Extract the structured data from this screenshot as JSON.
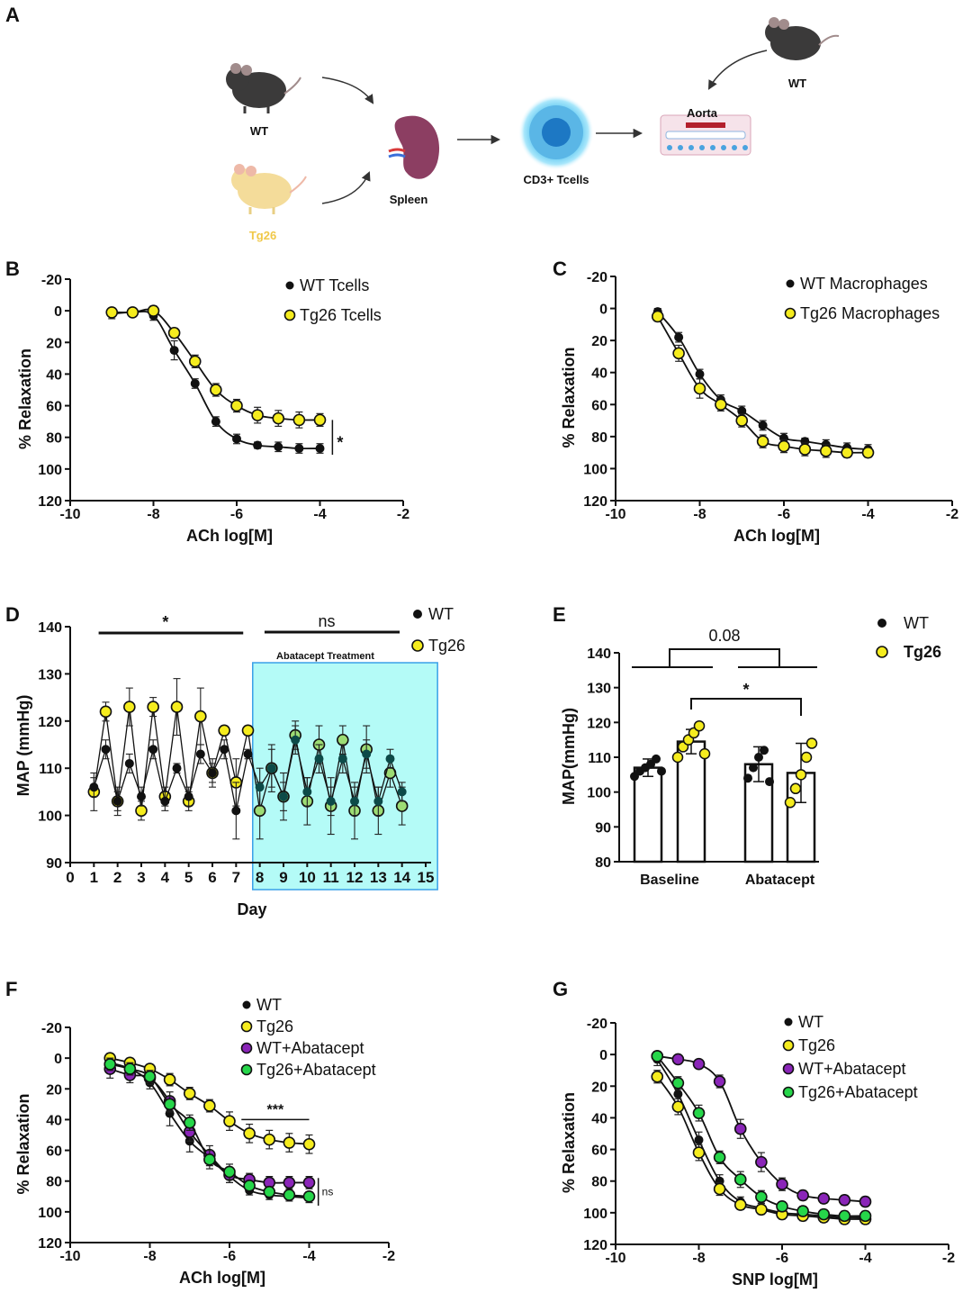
{
  "colors": {
    "wt": "#111111",
    "tg26": "#f5ec1e",
    "purple": "#8a25b8",
    "green": "#26d64a",
    "cyan_fill": "#b4fbf7",
    "cyan_border": "#3aa0e8"
  },
  "panelA": {
    "letter": "A",
    "labels": {
      "wt_left": "WT",
      "tg26": "Tg26",
      "spleen": "Spleen",
      "tcells": "CD3+ Tcells",
      "aorta": "Aorta",
      "wt_right": "WT"
    }
  },
  "chart_data": [
    {
      "id": "B",
      "type": "scatter",
      "letter": "B",
      "xlabel": "ACh log[M]",
      "ylabel": "% Relaxation",
      "xlim": [
        -10,
        -2
      ],
      "ylim": [
        -20,
        120
      ],
      "y_inverted": true,
      "xticks": [
        "-10",
        "-8",
        "-6",
        "-4",
        "-2"
      ],
      "yticks": [
        "-20",
        "0",
        "20",
        "40",
        "60",
        "80",
        "100",
        "120"
      ],
      "x": [
        -9,
        -8.5,
        -8,
        -7.5,
        -7,
        -6.5,
        -6,
        -5.5,
        -5,
        -4.5,
        -4
      ],
      "series": [
        {
          "name": "WT Tcells",
          "color": "#111111",
          "values": [
            2,
            1,
            3,
            25,
            46,
            70,
            81,
            85,
            86,
            87,
            87
          ],
          "err": [
            3,
            2,
            3,
            6,
            3,
            3,
            3,
            2,
            3,
            3,
            3
          ]
        },
        {
          "name": "Tg26 Tcells",
          "color": "#f5ec1e",
          "values": [
            1,
            1,
            0,
            14,
            32,
            50,
            60,
            66,
            68,
            69,
            69
          ],
          "err": [
            2,
            2,
            3,
            3,
            4,
            4,
            4,
            5,
            5,
            5,
            4
          ]
        }
      ],
      "annotations": [
        "*"
      ]
    },
    {
      "id": "C",
      "type": "scatter",
      "letter": "C",
      "xlabel": "ACh log[M]",
      "ylabel": "% Relaxation",
      "xlim": [
        -10,
        -2
      ],
      "ylim": [
        -20,
        120
      ],
      "y_inverted": true,
      "xticks": [
        "-10",
        "-8",
        "-6",
        "-4",
        "-2"
      ],
      "yticks": [
        "-20",
        "0",
        "20",
        "40",
        "60",
        "80",
        "100",
        "120"
      ],
      "x": [
        -9,
        -8.5,
        -8,
        -7.5,
        -7,
        -6.5,
        -6,
        -5.5,
        -5,
        -4.5,
        -4
      ],
      "series": [
        {
          "name": "WT Macrophages",
          "color": "#111111",
          "values": [
            2,
            18,
            41,
            57,
            64,
            73,
            81,
            83,
            85,
            87,
            88
          ],
          "err": [
            2,
            3,
            3,
            3,
            3,
            3,
            3,
            2,
            3,
            3,
            3
          ]
        },
        {
          "name": "Tg26 Macrophages",
          "color": "#f5ec1e",
          "values": [
            5,
            28,
            50,
            60,
            70,
            83,
            86,
            88,
            89,
            90,
            90
          ],
          "err": [
            3,
            5,
            6,
            4,
            4,
            4,
            4,
            4,
            4,
            3,
            3
          ]
        }
      ],
      "annotations": []
    },
    {
      "id": "D",
      "type": "line",
      "letter": "D",
      "xlabel": "Day",
      "ylabel": "MAP (mmHg)",
      "xlim": [
        0,
        15
      ],
      "ylim": [
        90,
        140
      ],
      "xticks": [
        "0",
        "1",
        "2",
        "3",
        "4",
        "5",
        "6",
        "7",
        "8",
        "9",
        "10",
        "11",
        "12",
        "13",
        "14",
        "15"
      ],
      "yticks": [
        "90",
        "100",
        "110",
        "120",
        "130",
        "140"
      ],
      "x": [
        1,
        1.5,
        2,
        2.5,
        3,
        3.5,
        4,
        4.5,
        5,
        5.5,
        6,
        6.5,
        7,
        7.5,
        8,
        8.5,
        9,
        9.5,
        10,
        10.5,
        11,
        11.5,
        12,
        12.5,
        13,
        13.5,
        14
      ],
      "series": [
        {
          "name": "WT",
          "color": "#111111",
          "values": [
            106,
            114,
            103,
            111,
            104,
            114,
            103,
            110,
            104,
            113,
            109,
            114,
            101,
            113,
            106,
            110,
            104,
            116,
            105,
            112,
            103,
            112,
            103,
            113,
            103,
            112,
            105
          ],
          "err": [
            2,
            2,
            2,
            2,
            2,
            2,
            2,
            1,
            2,
            2,
            2,
            2,
            6,
            1,
            4,
            4,
            3,
            3,
            3,
            3,
            3,
            3,
            3,
            3,
            3,
            2,
            2
          ]
        },
        {
          "name": "Tg26",
          "color": "#f5ec1e",
          "values": [
            105,
            122,
            103,
            123,
            101,
            123,
            104,
            123,
            103,
            121,
            109,
            118,
            107,
            118,
            101,
            110,
            104,
            117,
            103,
            115,
            102,
            116,
            101,
            114,
            101,
            109,
            102
          ],
          "err": [
            4,
            2,
            3,
            4,
            2,
            2,
            2,
            6,
            2,
            6,
            3,
            1,
            5,
            1,
            6,
            5,
            5,
            3,
            5,
            4,
            6,
            3,
            6,
            5,
            5,
            3,
            4
          ]
        }
      ],
      "shaded_region": {
        "from": 7.7,
        "to": 15.5,
        "label": "Abatacept Treatment"
      },
      "significance": [
        {
          "from": 1.2,
          "to": 7.3,
          "label": "*"
        },
        {
          "from": 8.2,
          "to": 13.9,
          "label": "ns"
        }
      ]
    },
    {
      "id": "E",
      "type": "bar",
      "letter": "E",
      "ylabel": "MAP(mmHg)",
      "ylim": [
        80,
        140
      ],
      "yticks": [
        "80",
        "90",
        "100",
        "110",
        "120",
        "130",
        "140"
      ],
      "categories": [
        "Baseline",
        "Abatacept"
      ],
      "series": [
        {
          "name": "WT",
          "color": "#111111",
          "values": [
            107,
            108
          ],
          "err": [
            2.5,
            5
          ],
          "points": [
            [
              104.5,
              106,
              107,
              108,
              109.5,
              106
            ],
            [
              104,
              107,
              110,
              112,
              103
            ]
          ]
        },
        {
          "name": "Tg26",
          "color": "#f5ec1e",
          "values": [
            114.5,
            105.5
          ],
          "err": [
            3.5,
            8.5
          ],
          "points": [
            [
              110,
              113,
              115,
              117,
              119,
              111
            ],
            [
              97,
              101,
              105,
              110,
              114
            ]
          ]
        }
      ],
      "significance": [
        {
          "label": "0.08",
          "pair": "group"
        },
        {
          "label": "*",
          "pair": "Tg26 Baseline vs Tg26 Abatacept"
        }
      ]
    },
    {
      "id": "F",
      "type": "scatter",
      "letter": "F",
      "xlabel": "ACh log[M]",
      "ylabel": "% Relaxation",
      "xlim": [
        -10,
        -2
      ],
      "ylim": [
        -20,
        120
      ],
      "y_inverted": true,
      "xticks": [
        "-10",
        "-8",
        "-6",
        "-4",
        "-2"
      ],
      "yticks": [
        "-20",
        "0",
        "20",
        "40",
        "60",
        "80",
        "100",
        "120"
      ],
      "x": [
        -9,
        -8.5,
        -8,
        -7.5,
        -7,
        -6.5,
        -6,
        -5.5,
        -5,
        -4.5,
        -4
      ],
      "series": [
        {
          "name": "WT",
          "color": "#111111",
          "values": [
            3,
            7,
            16,
            36,
            54,
            65,
            77,
            86,
            89,
            90,
            91
          ],
          "err": [
            4,
            4,
            4,
            8,
            7,
            5,
            4,
            3,
            3,
            3,
            3
          ]
        },
        {
          "name": "Tg26",
          "color": "#f5ec1e",
          "values": [
            0,
            3,
            7,
            14,
            23,
            31,
            41,
            49,
            53,
            55,
            56
          ],
          "err": [
            3,
            3,
            3,
            4,
            4,
            4,
            6,
            6,
            6,
            6,
            6
          ]
        },
        {
          "name": "WT+Abatacept",
          "color": "#8a25b8",
          "values": [
            7,
            11,
            13,
            28,
            48,
            63,
            76,
            79,
            81,
            81,
            81
          ],
          "err": [
            6,
            5,
            4,
            6,
            6,
            6,
            5,
            4,
            4,
            4,
            4
          ]
        },
        {
          "name": "Tg26+Abatacept",
          "color": "#26d64a",
          "values": [
            4,
            7,
            12,
            30,
            42,
            66,
            74,
            83,
            87,
            89,
            90
          ],
          "err": [
            4,
            4,
            4,
            5,
            5,
            6,
            5,
            3,
            3,
            3,
            3
          ]
        }
      ],
      "annotations": [
        "***",
        "ns"
      ]
    },
    {
      "id": "G",
      "type": "scatter",
      "letter": "G",
      "xlabel": "SNP log[M]",
      "ylabel": "% Relaxation",
      "xlim": [
        -10,
        -2
      ],
      "ylim": [
        -20,
        120
      ],
      "y_inverted": true,
      "xticks": [
        "-10",
        "-8",
        "-6",
        "-4",
        "-2"
      ],
      "yticks": [
        "-20",
        "0",
        "20",
        "40",
        "60",
        "80",
        "100",
        "120"
      ],
      "x": [
        -9,
        -8.5,
        -8,
        -7.5,
        -7,
        -6.5,
        -6,
        -5.5,
        -5,
        -4.5,
        -4
      ],
      "series": [
        {
          "name": "WT",
          "color": "#111111",
          "values": [
            3,
            25,
            54,
            80,
            93,
            97,
            100,
            101,
            102,
            103,
            103
          ],
          "err": [
            4,
            5,
            5,
            4,
            3,
            3,
            3,
            3,
            3,
            3,
            3
          ]
        },
        {
          "name": "Tg26",
          "color": "#f5ec1e",
          "values": [
            14,
            33,
            62,
            85,
            95,
            98,
            101,
            102,
            103,
            104,
            104
          ],
          "err": [
            4,
            5,
            5,
            4,
            3,
            3,
            3,
            3,
            3,
            3,
            3
          ]
        },
        {
          "name": "WT+Abatacept",
          "color": "#8a25b8",
          "values": [
            1,
            3,
            6,
            17,
            47,
            68,
            82,
            89,
            91,
            92,
            93
          ],
          "err": [
            2,
            2,
            2,
            4,
            6,
            6,
            4,
            3,
            3,
            3,
            3
          ]
        },
        {
          "name": "Tg26+Abatacept",
          "color": "#26d64a",
          "values": [
            1,
            18,
            37,
            65,
            79,
            90,
            96,
            99,
            101,
            102,
            102
          ],
          "err": [
            3,
            4,
            5,
            4,
            5,
            4,
            3,
            3,
            3,
            3,
            3
          ]
        }
      ],
      "annotations": []
    }
  ]
}
